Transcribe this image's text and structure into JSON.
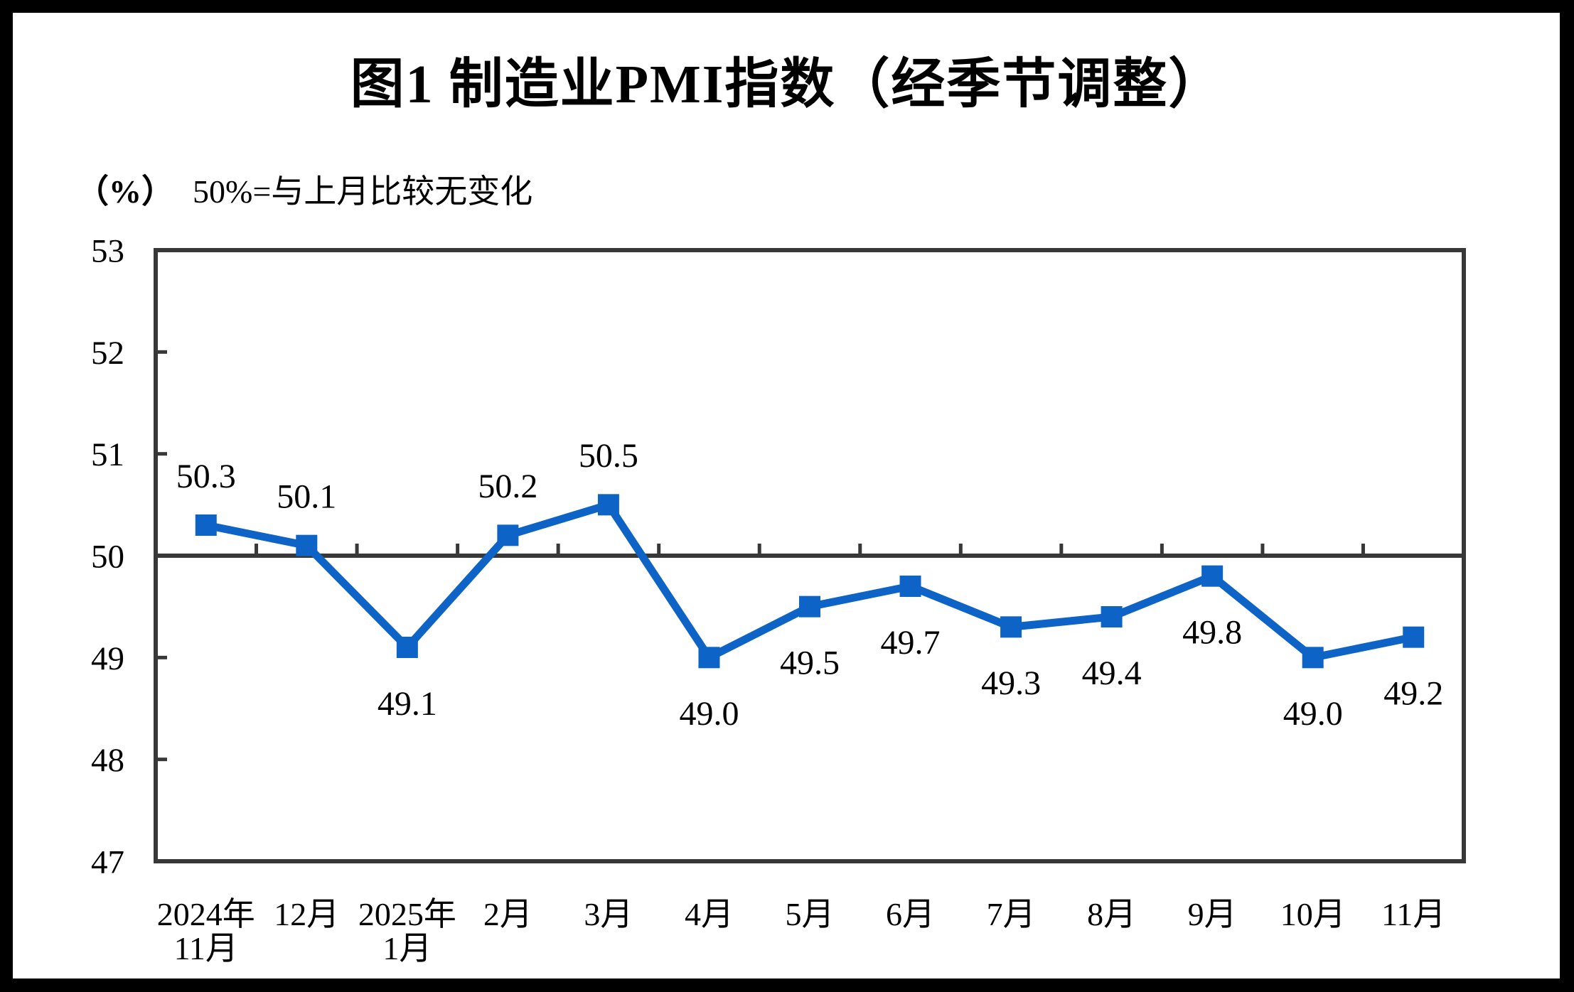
{
  "page": {
    "title": "图1  制造业PMI指数（经季节调整）",
    "unit_label": "（%）",
    "reference_note": "50%=与上月比较无变化"
  },
  "chart_data": {
    "type": "line",
    "title": "图1  制造业PMI指数（经季节调整）",
    "unit_label": "（%）",
    "annotation": "50%=与上月比较无变化",
    "categories": [
      "2024年11月",
      "12月",
      "2025年1月",
      "2月",
      "3月",
      "4月",
      "5月",
      "6月",
      "7月",
      "8月",
      "9月",
      "10月",
      "11月"
    ],
    "category_lines": [
      [
        "2024年",
        "11月"
      ],
      [
        "12月"
      ],
      [
        "2025年",
        "1月"
      ],
      [
        "2月"
      ],
      [
        "3月"
      ],
      [
        "4月"
      ],
      [
        "5月"
      ],
      [
        "6月"
      ],
      [
        "7月"
      ],
      [
        "8月"
      ],
      [
        "9月"
      ],
      [
        "10月"
      ],
      [
        "11月"
      ]
    ],
    "series": [
      {
        "name": "制造业PMI",
        "values": [
          50.3,
          50.1,
          49.1,
          50.2,
          50.5,
          49.0,
          49.5,
          49.7,
          49.3,
          49.4,
          49.8,
          49.0,
          49.2
        ]
      }
    ],
    "data_labels": [
      "50.3",
      "50.1",
      "49.1",
      "50.2",
      "50.5",
      "49.0",
      "49.5",
      "49.7",
      "49.3",
      "49.4",
      "49.8",
      "49.0",
      "49.2"
    ],
    "label_positions": [
      "above",
      "above",
      "below",
      "above",
      "above",
      "below",
      "below",
      "below",
      "below",
      "below",
      "below",
      "below",
      "below"
    ],
    "xlabel": "",
    "ylabel": "%",
    "ylim": [
      47,
      53
    ],
    "yticks": [
      47,
      48,
      49,
      50,
      51,
      52,
      53
    ],
    "reference_line": 50,
    "grid": false,
    "legend": false,
    "marker": "square",
    "colors": {
      "series": "#0D64C6",
      "axis": "#383838",
      "text": "#000000",
      "frame": "#000000",
      "background": "#FFFFFF"
    }
  }
}
